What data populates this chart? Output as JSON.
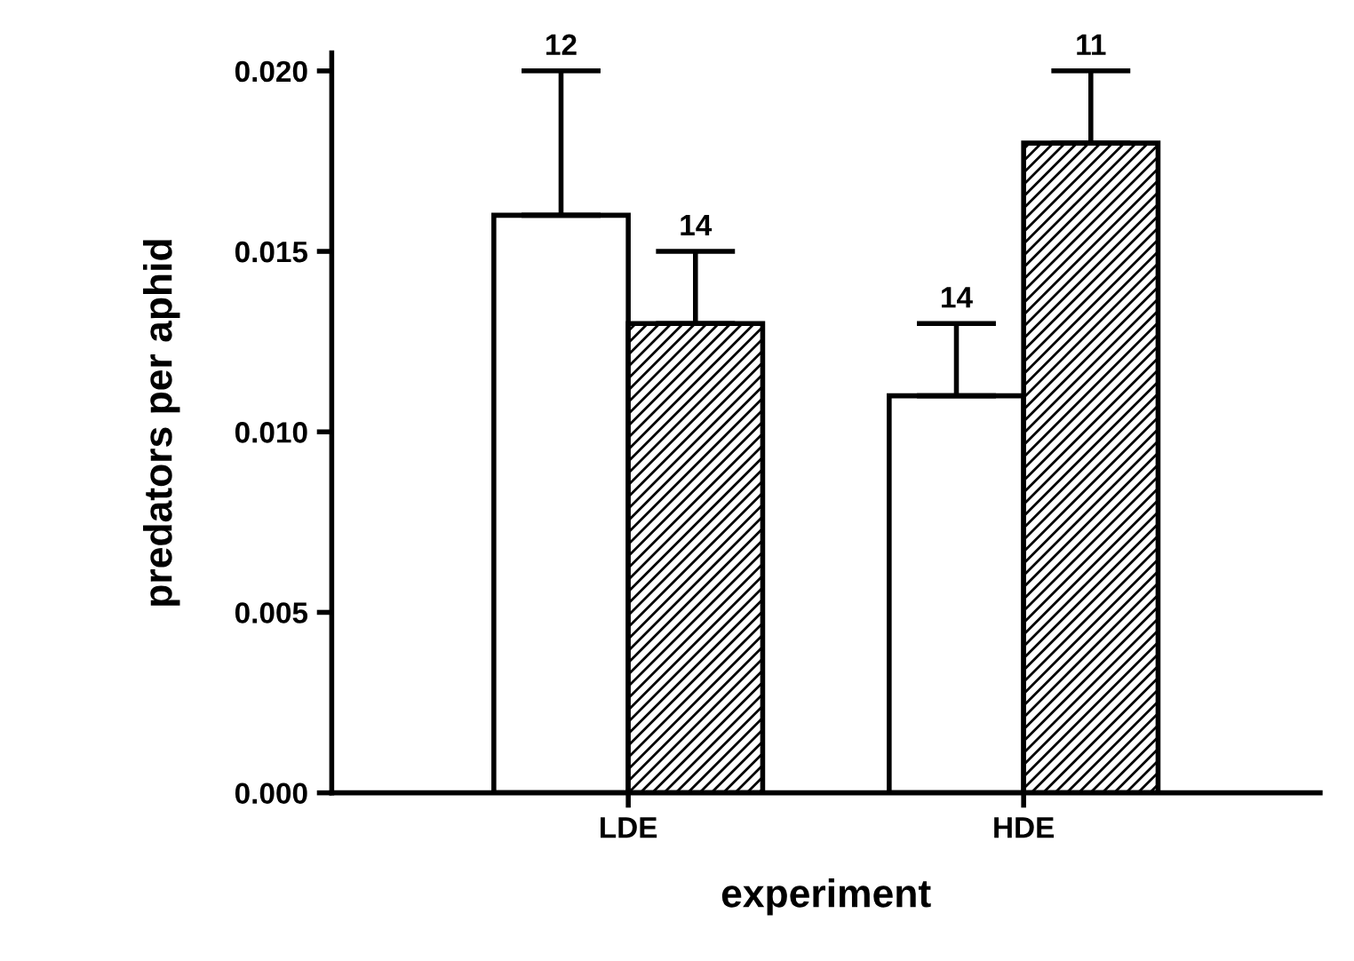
{
  "chart_data": {
    "type": "bar",
    "xlabel": "experiment",
    "ylabel": "predators per aphid",
    "categories": [
      "LDE",
      "HDE"
    ],
    "series": [
      {
        "color": "#ffffff",
        "values": [
          0.016,
          0.011
        ],
        "errors": [
          [
            0.016,
            0.02
          ],
          [
            0.011,
            0.013
          ]
        ]
      },
      {
        "color": "#000000",
        "values": [
          0.013,
          0.018
        ],
        "errors": [
          [
            0.013,
            0.015
          ],
          [
            0.018,
            0.02
          ]
        ]
      }
    ],
    "annotations": [
      "12",
      "14",
      "14",
      "11"
    ],
    "ylim": [
      0,
      0.0205
    ],
    "yticks": [
      {
        "value": 0,
        "label": "0.000"
      },
      {
        "value": 0.005,
        "label": "0.005"
      },
      {
        "value": 0.01,
        "label": "0.010"
      },
      {
        "value": 0.015,
        "label": "0.015"
      },
      {
        "value": 0.02,
        "label": "0.020"
      }
    ],
    "grid": false,
    "legend": false
  }
}
